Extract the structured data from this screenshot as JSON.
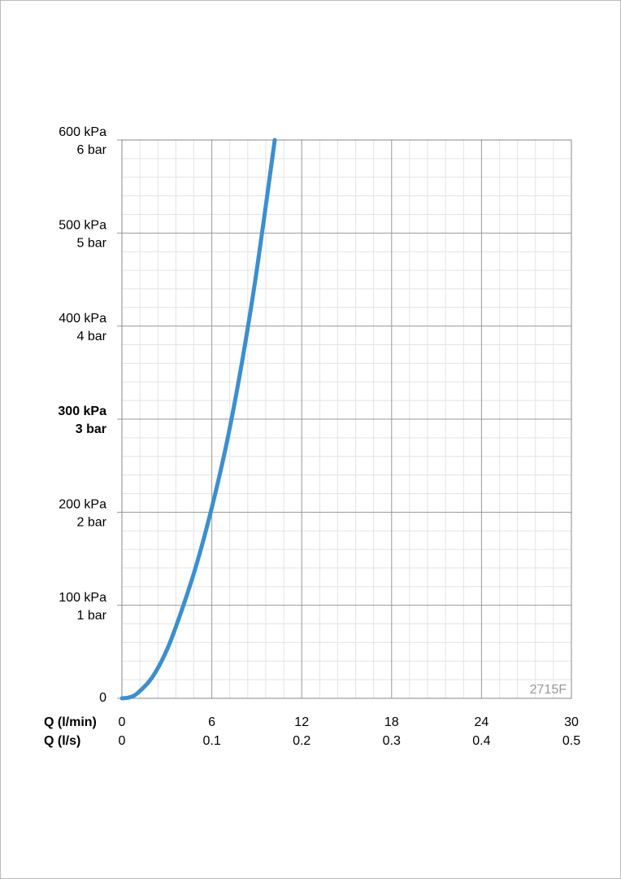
{
  "chart_data": {
    "type": "line",
    "x_label": "Q (l/min)",
    "x2_label": "Q (l/s)",
    "x": [
      0,
      0.5,
      1,
      2,
      3,
      4,
      5,
      6,
      7,
      8,
      9,
      10.2
    ],
    "values": [
      0,
      1,
      5,
      22,
      52,
      95,
      145,
      205,
      275,
      360,
      460,
      600
    ],
    "color": "#3a8fd0",
    "xlim": [
      0,
      30
    ],
    "xticks": [
      0,
      6,
      12,
      18,
      24,
      30
    ],
    "x2_tick_labels": [
      0,
      0.1,
      0.2,
      0.3,
      0.4,
      0.5
    ],
    "ylim": [
      0,
      600
    ],
    "yticks": [
      0,
      {
        "value": 100,
        "label": "100 kPa"
      },
      {
        "value": 200,
        "label": "200 kPa"
      },
      {
        "value": 300,
        "label": "300 kPa"
      },
      {
        "value": 400,
        "label": "400 kPa"
      },
      {
        "value": 500,
        "label": "500 kPa"
      },
      {
        "value": 600,
        "label": "600 kPa"
      }
    ],
    "ytick_labels2": [
      null,
      "1 bar",
      "2 bar",
      "3 bar",
      "4 bar",
      "5 bar",
      "6 bar"
    ],
    "highlight_ytick": 300,
    "grid": true,
    "minor_grid_divisions": 5,
    "annotation": "2715F"
  }
}
